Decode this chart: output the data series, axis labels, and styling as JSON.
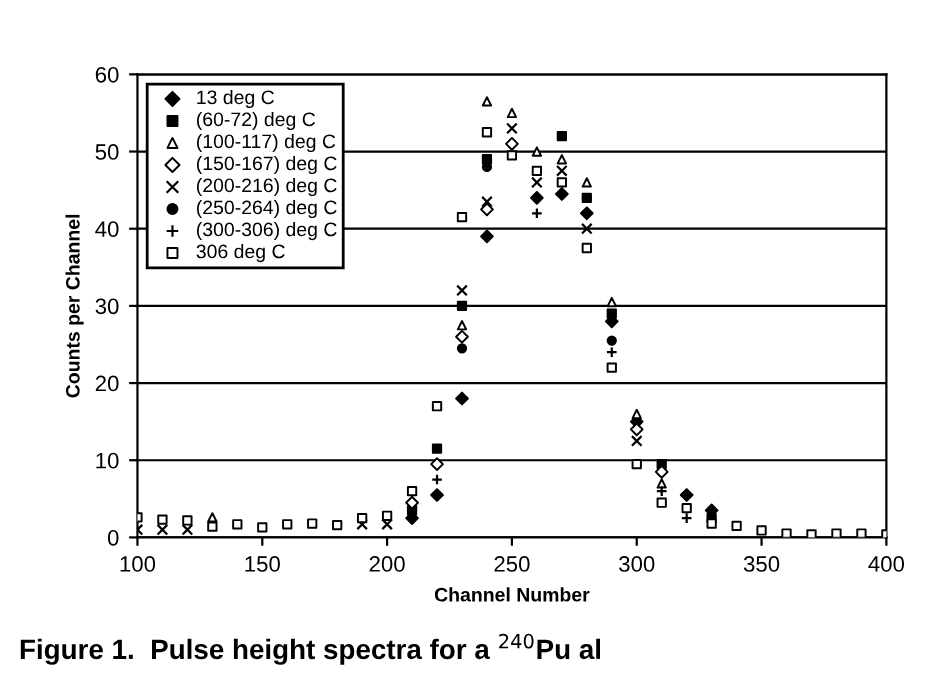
{
  "chart_data": {
    "type": "scatter",
    "xlabel": "Channel Number",
    "ylabel": "Counts per Channel",
    "annotations": [
      "Figure 1.  Pulse height spectra for a $^{240}$Pu al"
    ],
    "x": [
      100,
      110,
      120,
      130,
      140,
      150,
      160,
      170,
      180,
      190,
      200,
      210,
      220,
      230,
      240,
      250,
      260,
      270,
      280,
      290,
      300,
      310,
      320,
      330,
      340,
      350,
      360,
      370,
      380,
      390,
      400
    ],
    "xlim": [
      100,
      400
    ],
    "xticks": [
      100,
      150,
      200,
      250,
      300,
      350,
      400
    ],
    "ylim": [
      0,
      60
    ],
    "yticks": [
      0,
      10,
      20,
      30,
      40,
      50,
      60
    ],
    "grid": "y",
    "legend": "top left",
    "series": [
      {
        "name": "13 deg C",
        "color": "#000000",
        "marker": "diamond",
        "values": [
          null,
          null,
          null,
          null,
          null,
          null,
          null,
          null,
          null,
          null,
          null,
          2.5,
          5.5,
          18,
          39,
          null,
          44,
          44.5,
          42,
          28,
          15,
          null,
          5.5,
          3.5,
          null,
          null,
          null,
          null,
          null,
          null,
          null
        ]
      },
      {
        "name": "(60-72) deg C",
        "color": "#000000",
        "marker": "square",
        "values": [
          null,
          null,
          null,
          null,
          null,
          null,
          null,
          null,
          null,
          null,
          null,
          3.5,
          11.5,
          30,
          49,
          null,
          null,
          52,
          44,
          29,
          null,
          9.5,
          null,
          2.5,
          null,
          null,
          null,
          null,
          null,
          null,
          null
        ]
      },
      {
        "name": "(100-117) deg C",
        "color": "#000000",
        "marker": "triangle",
        "values": [
          null,
          null,
          null,
          2.6,
          null,
          null,
          null,
          null,
          null,
          null,
          null,
          null,
          null,
          27.5,
          56.5,
          55,
          50,
          49,
          46,
          30.5,
          16,
          7,
          null,
          null,
          null,
          null,
          null,
          null,
          null,
          null,
          null
        ]
      },
      {
        "name": "(150-167) deg C",
        "color": "#000000",
        "marker": "diamond",
        "values": [
          null,
          null,
          null,
          null,
          null,
          null,
          null,
          null,
          null,
          null,
          null,
          4.5,
          9.5,
          26,
          42.5,
          51,
          null,
          null,
          null,
          null,
          14,
          8.5,
          null,
          null,
          null,
          null,
          null,
          null,
          null,
          null,
          null
        ]
      },
      {
        "name": "(200-216) deg C",
        "color": "#000000",
        "marker": "cross",
        "values": [
          1,
          1,
          1,
          null,
          null,
          null,
          null,
          null,
          null,
          1.7,
          1.7,
          null,
          null,
          32,
          43.5,
          53,
          46,
          47.5,
          40,
          null,
          12.5,
          null,
          null,
          null,
          null,
          null,
          null,
          null,
          null,
          null,
          null
        ]
      },
      {
        "name": "(250-264) deg C",
        "color": "#000000",
        "marker": "circle",
        "values": [
          null,
          null,
          null,
          null,
          null,
          null,
          null,
          null,
          null,
          null,
          null,
          null,
          null,
          24.5,
          48,
          null,
          null,
          null,
          null,
          25.5,
          null,
          null,
          null,
          null,
          null,
          null,
          null,
          null,
          null,
          null,
          null
        ]
      },
      {
        "name": "(300-306) deg C",
        "color": "#000000",
        "marker": "plus",
        "values": [
          null,
          null,
          null,
          null,
          null,
          null,
          null,
          null,
          null,
          null,
          null,
          null,
          7.5,
          null,
          null,
          null,
          42,
          null,
          null,
          24,
          null,
          6,
          2.5,
          null,
          null,
          null,
          null,
          null,
          null,
          null,
          null
        ]
      },
      {
        "name": "306 deg C",
        "color": "#000000",
        "marker": "square",
        "values": [
          2.6,
          2.3,
          2.2,
          1.4,
          1.7,
          1.3,
          1.7,
          1.8,
          1.6,
          2.5,
          2.8,
          6,
          17,
          41.5,
          52.5,
          49.5,
          47.5,
          46,
          37.5,
          22,
          9.5,
          4.5,
          3.8,
          1.8,
          1.5,
          0.9,
          0.5,
          0.4,
          0.5,
          0.5,
          0.4
        ]
      }
    ]
  }
}
